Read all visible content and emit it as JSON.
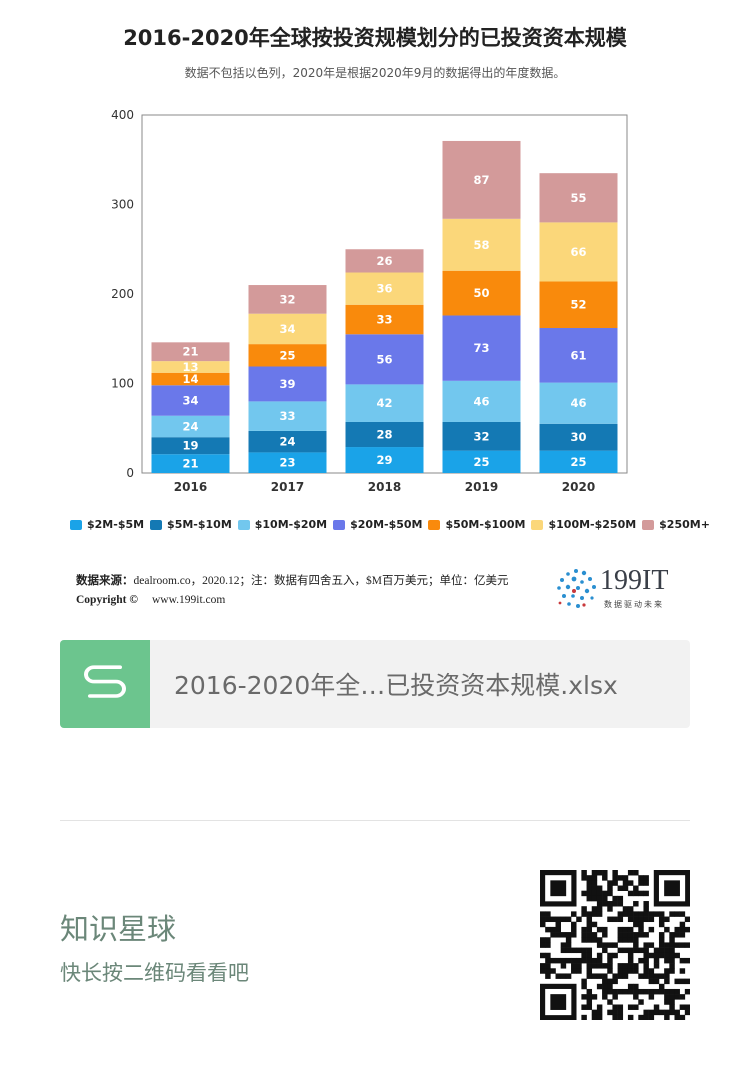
{
  "header": {
    "title": "2016-2020年全球按投资规模划分的已投资资本规模",
    "subtitle": "数据不包括以色列，2020年是根据2020年9月的数据得出的年度数据。"
  },
  "chart_data": {
    "type": "bar",
    "stacked": true,
    "categories": [
      "2016",
      "2017",
      "2018",
      "2019",
      "2020"
    ],
    "ylim": [
      0,
      400
    ],
    "yticks": [
      "0",
      "100",
      "200",
      "300",
      "400"
    ],
    "grid": false,
    "legend_position": "bottom",
    "series": [
      {
        "name": "$2M-$5M",
        "color": "#1aa3e8",
        "values": [
          21,
          23,
          29,
          25,
          25
        ]
      },
      {
        "name": "$5M-$10M",
        "color": "#1479b4",
        "values": [
          19,
          24,
          28,
          32,
          30
        ]
      },
      {
        "name": "$10M-$20M",
        "color": "#72c7ee",
        "values": [
          24,
          33,
          42,
          46,
          46
        ]
      },
      {
        "name": "$20M-$50M",
        "color": "#6a78ea",
        "values": [
          34,
          39,
          56,
          73,
          61
        ]
      },
      {
        "name": "$50M-$100M",
        "color": "#f98a0c",
        "values": [
          14,
          25,
          33,
          50,
          52
        ]
      },
      {
        "name": "$100M-$250M",
        "color": "#fbd77a",
        "values": [
          13,
          34,
          36,
          58,
          66
        ]
      },
      {
        "name": "$250M+",
        "color": "#d39a9a",
        "values": [
          21,
          32,
          26,
          87,
          55
        ]
      }
    ]
  },
  "footer": {
    "source_label": "数据来源：",
    "source_text": "dealroom.co，2020.12；注：数据有四舍五入，$M百万美元；单位：亿美元",
    "copyright_label": "Copyright ©",
    "copyright_url": "www.199it.com",
    "logo_text": "199IT",
    "logo_sub": "数据驱动未来"
  },
  "file_card": {
    "icon": "spreadsheet-s-icon",
    "file_name": "2016-2020年全…已投资资本规模.xlsx"
  },
  "promo": {
    "title": "知识星球",
    "subtitle": "快长按二维码看看吧"
  }
}
